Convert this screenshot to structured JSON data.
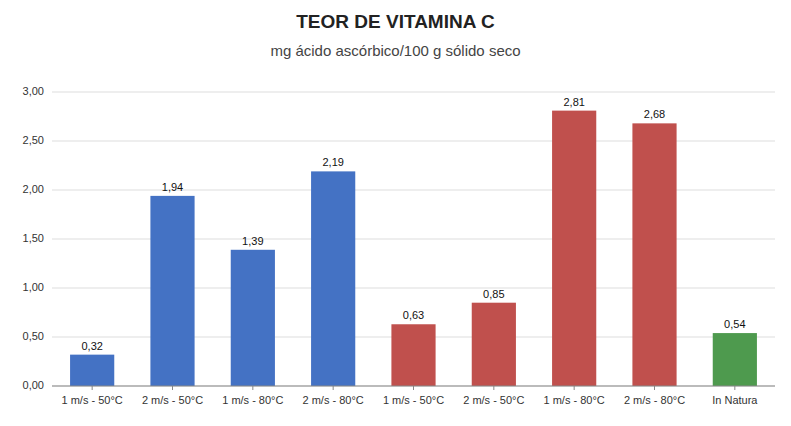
{
  "chart_data": {
    "type": "bar",
    "title": "TEOR DE VITAMINA C",
    "subtitle": "mg ácido ascórbico/100 g sólido seco",
    "categories": [
      "1 m/s - 50°C",
      "2 m/s - 50°C",
      "1 m/s - 80°C",
      "2 m/s - 80°C",
      "1 m/s - 50°C",
      "2 m/s - 50°C",
      "1 m/s - 80°C",
      "2 m/s - 80°C",
      "In Natura"
    ],
    "values": [
      0.32,
      1.94,
      1.39,
      2.19,
      0.63,
      0.85,
      2.81,
      2.68,
      0.54
    ],
    "value_labels": [
      "0,32",
      "1,94",
      "1,39",
      "2,19",
      "0,63",
      "0,85",
      "2,81",
      "2,68",
      "0,54"
    ],
    "colors": [
      "#4472C4",
      "#4472C4",
      "#4472C4",
      "#4472C4",
      "#C0504D",
      "#C0504D",
      "#C0504D",
      "#C0504D",
      "#4E9A4E"
    ],
    "ylim": [
      0.0,
      3.0
    ],
    "yticks": [
      {
        "value": 0.0,
        "label": "0,00"
      },
      {
        "value": 0.5,
        "label": "0,50"
      },
      {
        "value": 1.0,
        "label": "1,00"
      },
      {
        "value": 1.5,
        "label": "1,50"
      },
      {
        "value": 2.0,
        "label": "2,00"
      },
      {
        "value": 2.5,
        "label": "2,50"
      },
      {
        "value": 3.0,
        "label": "3,00"
      }
    ],
    "grid": true,
    "data_labels": true
  }
}
